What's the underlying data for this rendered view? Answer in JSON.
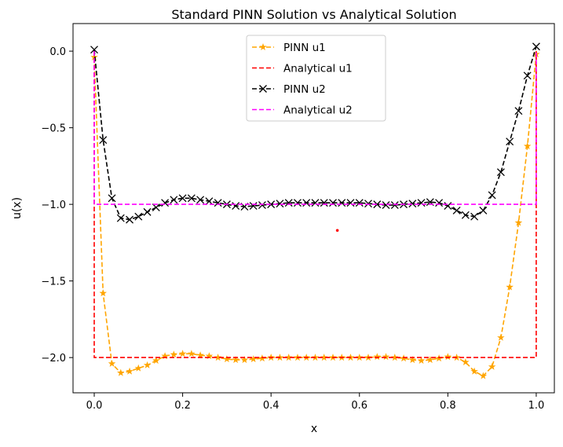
{
  "chart_data": {
    "type": "line",
    "title": "Standard PINN Solution vs Analytical Solution",
    "xlabel": "x",
    "ylabel": "u(x)",
    "xlim": [
      -0.048,
      1.041
    ],
    "ylim": [
      -2.23,
      0.18
    ],
    "xticks": [
      0.0,
      0.2,
      0.4,
      0.6,
      0.8,
      1.0
    ],
    "xtick_labels": [
      "0.0",
      "0.2",
      "0.4",
      "0.6",
      "0.8",
      "1.0"
    ],
    "yticks": [
      0.0,
      -0.5,
      -1.0,
      -1.5,
      -2.0
    ],
    "ytick_labels": [
      "0.0",
      "−0.5",
      "−1.0",
      "−1.5",
      "−2.0"
    ],
    "grid": false,
    "legend_placement": "upper-center",
    "x": [
      0,
      0.02,
      0.04,
      0.06,
      0.08,
      0.1,
      0.12,
      0.14,
      0.16,
      0.18,
      0.2,
      0.22,
      0.24,
      0.26,
      0.28,
      0.3,
      0.32,
      0.34,
      0.36,
      0.38,
      0.4,
      0.42,
      0.44,
      0.46,
      0.48,
      0.5,
      0.52,
      0.54,
      0.56,
      0.58,
      0.6,
      0.62,
      0.64,
      0.66,
      0.68,
      0.7,
      0.72,
      0.74,
      0.76,
      0.78,
      0.8,
      0.82,
      0.84,
      0.86,
      0.88,
      0.9,
      0.92,
      0.94,
      0.96,
      0.98,
      1.0
    ],
    "series": [
      {
        "name": "PINN u1",
        "color": "#ffa500",
        "style": "dashed",
        "marker": "star",
        "values": [
          -0.04,
          -1.58,
          -2.04,
          -2.1,
          -2.09,
          -2.07,
          -2.05,
          -2.02,
          -1.99,
          -1.98,
          -1.975,
          -1.975,
          -1.985,
          -1.99,
          -2.0,
          -2.01,
          -2.015,
          -2.015,
          -2.01,
          -2.005,
          -2.0,
          -2.0,
          -2.0,
          -2.0,
          -2.0,
          -2.0,
          -2.0,
          -2.0,
          -2.0,
          -2.0,
          -2.0,
          -2.0,
          -1.995,
          -1.995,
          -2.0,
          -2.005,
          -2.015,
          -2.02,
          -2.015,
          -2.005,
          -1.995,
          -2.0,
          -2.03,
          -2.09,
          -2.12,
          -2.06,
          -1.87,
          -1.54,
          -1.12,
          -0.62,
          -0.02
        ]
      },
      {
        "name": "Analytical u1",
        "color": "#ff0000",
        "style": "dashed",
        "marker": "none",
        "points": [
          [
            0,
            0
          ],
          [
            0,
            -2
          ],
          [
            1,
            -2
          ],
          [
            1,
            0
          ]
        ]
      },
      {
        "name": "PINN u2",
        "color": "#000000",
        "style": "dashed",
        "marker": "x",
        "values": [
          0.01,
          -0.58,
          -0.96,
          -1.09,
          -1.1,
          -1.08,
          -1.05,
          -1.02,
          -0.99,
          -0.97,
          -0.96,
          -0.96,
          -0.97,
          -0.98,
          -0.99,
          -1.0,
          -1.01,
          -1.015,
          -1.01,
          -1.005,
          -1.0,
          -0.995,
          -0.99,
          -0.99,
          -0.99,
          -0.99,
          -0.99,
          -0.99,
          -0.99,
          -0.99,
          -0.99,
          -0.995,
          -1.0,
          -1.005,
          -1.005,
          -1.0,
          -0.995,
          -0.99,
          -0.985,
          -0.99,
          -1.01,
          -1.04,
          -1.07,
          -1.08,
          -1.04,
          -0.94,
          -0.79,
          -0.59,
          -0.39,
          -0.16,
          0.03
        ]
      },
      {
        "name": "Analytical u2",
        "color": "#ff00ff",
        "style": "dashed",
        "marker": "none",
        "points": [
          [
            0,
            0
          ],
          [
            0,
            -1
          ],
          [
            1,
            -1
          ],
          [
            1,
            0
          ]
        ]
      }
    ],
    "annotations": [
      {
        "type": "point",
        "x": 0.55,
        "y": -1.17,
        "color": "#ff0000"
      }
    ]
  }
}
